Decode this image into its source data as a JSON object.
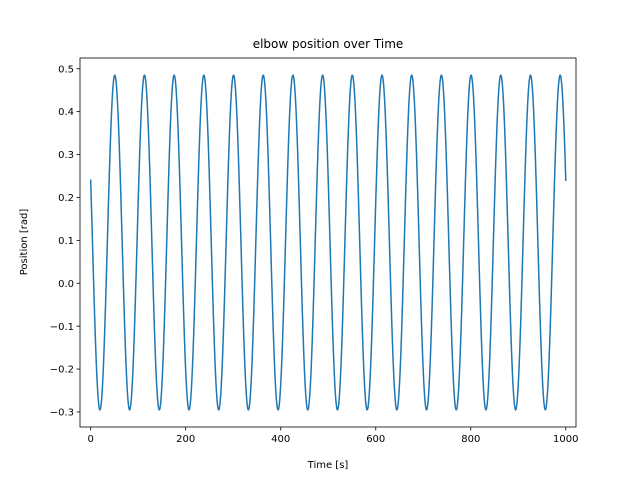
{
  "chart_data": {
    "type": "line",
    "title": "elbow position over Time",
    "xlabel": "Time [s]",
    "ylabel": "Position [rad]",
    "xlim": [
      -22.5,
      1021.5
    ],
    "ylim": [
      -0.335,
      0.525
    ],
    "x_ticks": [
      0,
      200,
      400,
      600,
      800,
      1000
    ],
    "x_tick_labels": [
      "0",
      "200",
      "400",
      "600",
      "800",
      "1000"
    ],
    "y_ticks": [
      -0.3,
      -0.2,
      -0.1,
      0.0,
      0.1,
      0.2,
      0.3,
      0.4,
      0.5
    ],
    "y_tick_labels": [
      "−0.3",
      "−0.2",
      "−0.1",
      "0.0",
      "0.1",
      "0.2",
      "0.3",
      "0.4",
      "0.5"
    ],
    "grid": false,
    "series": [
      {
        "color": "#1f77b4",
        "x_range": [
          0,
          1000
        ],
        "sinusoid": {
          "center": 0.095,
          "amplitude": 0.39,
          "period": 62.5,
          "initial_value": 0.24,
          "initial_slope": "negative"
        }
      }
    ]
  }
}
